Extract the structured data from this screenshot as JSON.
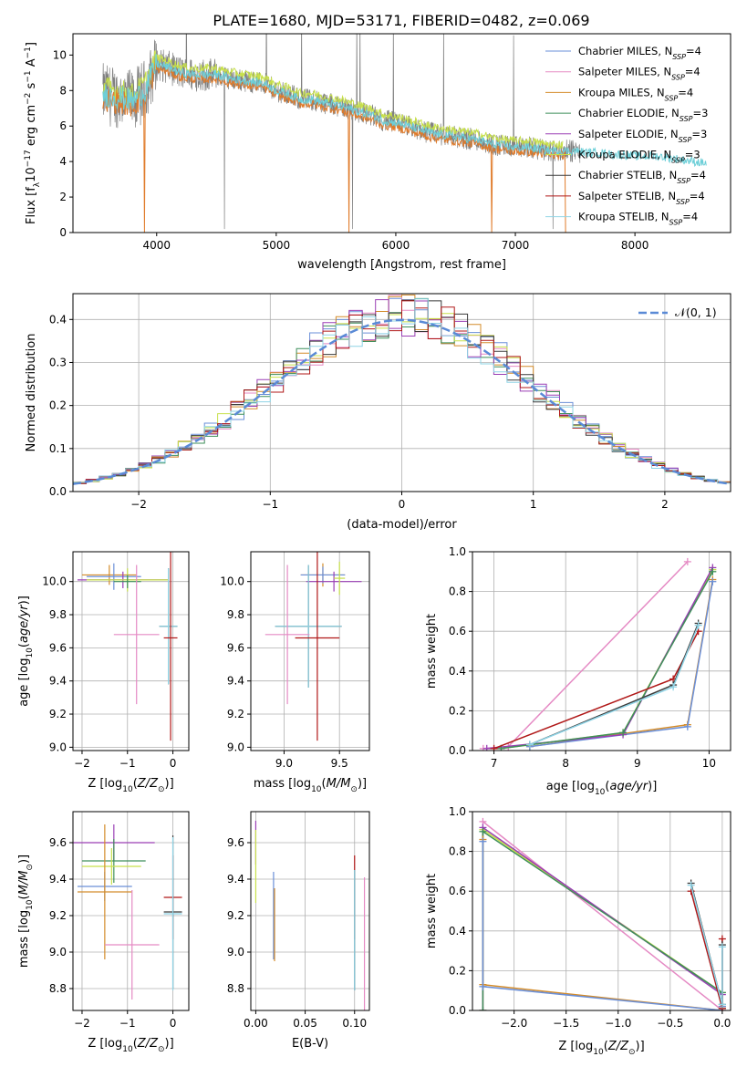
{
  "figure": {
    "title": "PLATE=1680, MJD=53171, FIBERID=0482, z=0.069"
  },
  "colors": {
    "chabrier_miles": "#6a8fd8",
    "salpeter_miles": "#e58ac4",
    "kroupa_miles": "#d48c2a",
    "chabrier_elodie": "#3f8f5a",
    "salpeter_elodie": "#9a3fb5",
    "kroupa_elodie": "#c7e04a",
    "chabrier_stelib": "#3a3a3a",
    "salpeter_stelib": "#b01818",
    "kroupa_stelib": "#8fd4e6",
    "data": "#808080",
    "model_orange": "#e07b2a",
    "model_cyan": "#6dcfd8",
    "gaussian": "#5a8ad6"
  },
  "chart_data": [
    {
      "id": "spectrum",
      "type": "line",
      "xlabel": "wavelength [Angstrom, rest frame]",
      "ylabel": "Flux [f_λ10^-17 erg cm^-2 s^-1 A^-1]",
      "ylabel_parts": [
        "Flux [f",
        "λ",
        "10",
        "−17",
        " erg cm",
        "−2",
        " s",
        "−1",
        " A",
        "−1",
        "]"
      ],
      "xlim": [
        3300,
        8800
      ],
      "ylim": [
        0,
        11.2
      ],
      "xticks": [
        4000,
        5000,
        6000,
        7000,
        8000
      ],
      "yticks": [
        0,
        2,
        4,
        6,
        8,
        10
      ],
      "continuum": [
        [
          3550,
          7.8
        ],
        [
          3700,
          7.6
        ],
        [
          3800,
          7.4
        ],
        [
          3900,
          8.0
        ],
        [
          4000,
          9.5
        ],
        [
          4100,
          9.3
        ],
        [
          4200,
          9.0
        ],
        [
          4300,
          8.9
        ],
        [
          4400,
          8.9
        ],
        [
          4500,
          8.9
        ],
        [
          4600,
          8.7
        ],
        [
          4700,
          8.6
        ],
        [
          4800,
          8.5
        ],
        [
          4900,
          8.4
        ],
        [
          5000,
          8.0
        ],
        [
          5100,
          7.8
        ],
        [
          5200,
          7.5
        ],
        [
          5300,
          7.5
        ],
        [
          5400,
          7.3
        ],
        [
          5500,
          7.2
        ],
        [
          5600,
          7.0
        ],
        [
          5700,
          6.8
        ],
        [
          5800,
          6.6
        ],
        [
          5900,
          6.3
        ],
        [
          6000,
          6.2
        ],
        [
          6100,
          6.0
        ],
        [
          6200,
          5.8
        ],
        [
          6300,
          5.6
        ],
        [
          6400,
          5.5
        ],
        [
          6500,
          5.4
        ],
        [
          6600,
          5.3
        ],
        [
          6700,
          5.2
        ],
        [
          6800,
          5.0
        ],
        [
          6900,
          4.9
        ],
        [
          7000,
          4.8
        ],
        [
          7100,
          4.8
        ],
        [
          7200,
          4.7
        ],
        [
          7300,
          4.6
        ],
        [
          7400,
          4.6
        ],
        [
          7500,
          4.6
        ],
        [
          7600,
          4.5
        ],
        [
          7700,
          4.5
        ],
        [
          7800,
          4.4
        ],
        [
          7900,
          4.4
        ],
        [
          8000,
          4.3
        ],
        [
          8100,
          4.3
        ],
        [
          8200,
          4.3
        ],
        [
          8300,
          4.2
        ],
        [
          8400,
          4.1
        ],
        [
          8500,
          4.0
        ],
        [
          8600,
          3.9
        ],
        [
          8700,
          3.8
        ],
        [
          8800,
          3.7
        ]
      ],
      "legend": [
        {
          "name": "Chabrier MILES, N",
          "sub": "SSP",
          "suffix": "=4",
          "color_key": "chabrier_miles"
        },
        {
          "name": "Salpeter MILES, N",
          "sub": "SSP",
          "suffix": "=4",
          "color_key": "salpeter_miles"
        },
        {
          "name": "Kroupa MILES, N",
          "sub": "SSP",
          "suffix": "=4",
          "color_key": "kroupa_miles"
        },
        {
          "name": "Chabrier ELODIE, N",
          "sub": "SSP",
          "suffix": "=3",
          "color_key": "chabrier_elodie"
        },
        {
          "name": "Salpeter ELODIE, N",
          "sub": "SSP",
          "suffix": "=3",
          "color_key": "salpeter_elodie"
        },
        {
          "name": "Kroupa ELODIE, N",
          "sub": "SSP",
          "suffix": "=3",
          "color_key": "kroupa_elodie"
        },
        {
          "name": "Chabrier STELIB, N",
          "sub": "SSP",
          "suffix": "=4",
          "color_key": "chabrier_stelib"
        },
        {
          "name": "Salpeter STELIB, N",
          "sub": "SSP",
          "suffix": "=4",
          "color_key": "salpeter_stelib"
        },
        {
          "name": "Kroupa STELIB, N",
          "sub": "SSP",
          "suffix": "=4",
          "color_key": "kroupa_stelib"
        }
      ]
    },
    {
      "id": "residuals",
      "type": "line",
      "xlabel": "(data-model)/error",
      "ylabel": "Normed distribution",
      "xlim": [
        -2.5,
        2.5
      ],
      "ylim": [
        0,
        0.46
      ],
      "xticks": [
        -2,
        -1,
        0,
        1,
        2
      ],
      "yticks": [
        0.0,
        0.1,
        0.2,
        0.3,
        0.4
      ],
      "legend_label": "𝒩(0, 1)",
      "bin_width": 0.1
    },
    {
      "id": "age_vs_Z",
      "type": "scatter",
      "xlabel": "Z [log10(Z/Z⊙)]",
      "ylabel": "age  [log10(age/yr)]",
      "xlim": [
        -2.2,
        0.35
      ],
      "ylim": [
        8.98,
        10.18
      ],
      "xticks": [
        -2,
        -1,
        0
      ],
      "yticks": [
        9.0,
        9.2,
        9.4,
        9.6,
        9.8,
        10.0
      ],
      "points": [
        {
          "x": -1.4,
          "y": 10.04,
          "xerr": 0.6,
          "yerr": 0.06,
          "color_key": "kroupa_miles"
        },
        {
          "x": -1.3,
          "y": 10.03,
          "xerr": 0.6,
          "yerr": 0.08,
          "color_key": "chabrier_miles"
        },
        {
          "x": -1.1,
          "y": 10.01,
          "xerr": 1.0,
          "yerr": 0.05,
          "color_key": "salpeter_elodie"
        },
        {
          "x": -1.0,
          "y": 10.01,
          "xerr": 0.9,
          "yerr": 0.07,
          "color_key": "kroupa_elodie"
        },
        {
          "x": -1.0,
          "y": 10.0,
          "xerr": 0.3,
          "yerr": 0.04,
          "color_key": "chabrier_elodie"
        },
        {
          "x": -0.8,
          "y": 9.68,
          "xerr": 0.5,
          "yerr": 0.42,
          "color_key": "salpeter_miles"
        },
        {
          "x": -0.1,
          "y": 9.73,
          "xerr": 0.2,
          "yerr": 0.35,
          "color_key": "chabrier_stelib"
        },
        {
          "x": -0.1,
          "y": 9.73,
          "xerr": 0.2,
          "yerr": 0.35,
          "color_key": "kroupa_stelib"
        },
        {
          "x": -0.05,
          "y": 9.66,
          "xerr": 0.15,
          "yerr": 0.62,
          "color_key": "salpeter_stelib"
        }
      ]
    },
    {
      "id": "age_vs_mass",
      "type": "scatter",
      "xlabel": "mass [log10(M/M⊙)]",
      "ylabel": "",
      "xlim": [
        8.7,
        9.77
      ],
      "ylim": [
        8.98,
        10.18
      ],
      "xticks": [
        9.0,
        9.5
      ],
      "yticks": [
        9.0,
        9.2,
        9.4,
        9.6,
        9.8,
        10.0
      ],
      "points": [
        {
          "x": 9.35,
          "y": 10.04,
          "xerr": 0.2,
          "yerr": 0.07,
          "color_key": "kroupa_miles"
        },
        {
          "x": 9.35,
          "y": 10.04,
          "xerr": 0.2,
          "yerr": 0.05,
          "color_key": "chabrier_miles"
        },
        {
          "x": 9.45,
          "y": 10.0,
          "xerr": 0.25,
          "yerr": 0.06,
          "color_key": "salpeter_elodie"
        },
        {
          "x": 9.5,
          "y": 10.02,
          "xerr": 0.05,
          "yerr": 0.1,
          "color_key": "kroupa_elodie"
        },
        {
          "x": 9.22,
          "y": 9.73,
          "xerr": 0.3,
          "yerr": 0.37,
          "color_key": "chabrier_stelib"
        },
        {
          "x": 9.22,
          "y": 9.73,
          "xerr": 0.3,
          "yerr": 0.37,
          "color_key": "kroupa_stelib"
        },
        {
          "x": 9.3,
          "y": 9.66,
          "xerr": 0.2,
          "yerr": 0.62,
          "color_key": "salpeter_stelib"
        },
        {
          "x": 9.03,
          "y": 9.68,
          "xerr": 0.2,
          "yerr": 0.42,
          "color_key": "salpeter_miles"
        }
      ]
    },
    {
      "id": "weight_vs_age",
      "type": "line",
      "xlabel": "age  [log10(age/yr)]",
      "ylabel": "mass weight",
      "xlim": [
        6.7,
        10.3
      ],
      "ylim": [
        0,
        1.0
      ],
      "xticks": [
        7,
        8,
        9,
        10
      ],
      "yticks": [
        0.0,
        0.2,
        0.4,
        0.6,
        0.8,
        1.0
      ],
      "series": [
        {
          "color_key": "salpeter_miles",
          "x": [
            6.85,
            7.2,
            9.7
          ],
          "y": [
            0.01,
            0.02,
            0.95
          ]
        },
        {
          "color_key": "kroupa_miles",
          "x": [
            7.5,
            9.7,
            10.05
          ],
          "y": [
            0.02,
            0.13,
            0.86
          ]
        },
        {
          "color_key": "chabrier_miles",
          "x": [
            7.5,
            9.7,
            10.05
          ],
          "y": [
            0.02,
            0.12,
            0.85
          ]
        },
        {
          "color_key": "kroupa_elodie",
          "x": [
            7.1,
            8.8,
            10.05
          ],
          "y": [
            0.01,
            0.09,
            0.91
          ]
        },
        {
          "color_key": "salpeter_elodie",
          "x": [
            6.9,
            8.8,
            10.05
          ],
          "y": [
            0.01,
            0.08,
            0.92
          ]
        },
        {
          "color_key": "chabrier_elodie",
          "x": [
            7.1,
            8.8,
            10.05
          ],
          "y": [
            0.01,
            0.09,
            0.9
          ]
        },
        {
          "color_key": "salpeter_stelib",
          "x": [
            7.0,
            9.5,
            9.85
          ],
          "y": [
            0.01,
            0.36,
            0.6
          ]
        },
        {
          "color_key": "chabrier_stelib",
          "x": [
            7.5,
            9.5,
            9.85
          ],
          "y": [
            0.03,
            0.33,
            0.64
          ]
        },
        {
          "color_key": "kroupa_stelib",
          "x": [
            7.5,
            9.5,
            9.85
          ],
          "y": [
            0.03,
            0.32,
            0.63
          ]
        }
      ]
    },
    {
      "id": "mass_vs_Z",
      "type": "scatter",
      "xlabel": "Z [log10(Z/Z⊙)]",
      "ylabel": "mass [log10(M/M⊙)]",
      "xlim": [
        -2.2,
        0.35
      ],
      "ylim": [
        8.68,
        9.77
      ],
      "xticks": [
        -2,
        -1,
        0
      ],
      "yticks": [
        8.8,
        9.0,
        9.2,
        9.4,
        9.6
      ],
      "points": [
        {
          "x": -1.3,
          "y": 9.6,
          "xerr": 0.9,
          "yerr": 0.1,
          "color_key": "salpeter_elodie"
        },
        {
          "x": -1.3,
          "y": 9.5,
          "xerr": 0.7,
          "yerr": 0.12,
          "color_key": "chabrier_elodie"
        },
        {
          "x": -1.35,
          "y": 9.47,
          "xerr": 0.65,
          "yerr": 0.1,
          "color_key": "kroupa_elodie"
        },
        {
          "x": -1.5,
          "y": 9.36,
          "xerr": 0.6,
          "yerr": 0.08,
          "color_key": "chabrier_miles"
        },
        {
          "x": -1.5,
          "y": 9.33,
          "xerr": 0.6,
          "yerr": 0.37,
          "color_key": "kroupa_miles"
        },
        {
          "x": -0.9,
          "y": 9.04,
          "xerr": 0.6,
          "yerr": 0.3,
          "color_key": "salpeter_miles"
        },
        {
          "x": 0.0,
          "y": 9.3,
          "xerr": 0.2,
          "yerr": 0.23,
          "color_key": "salpeter_stelib"
        },
        {
          "x": 0.0,
          "y": 9.22,
          "xerr": 0.2,
          "yerr": 0.42,
          "color_key": "chabrier_stelib"
        },
        {
          "x": 0.0,
          "y": 9.21,
          "xerr": 0.2,
          "yerr": 0.42,
          "color_key": "kroupa_stelib"
        }
      ]
    },
    {
      "id": "mass_vs_ebv",
      "type": "scatter",
      "xlabel": "E(B-V)",
      "ylabel": "",
      "xlim": [
        -0.005,
        0.115
      ],
      "ylim": [
        8.68,
        9.77
      ],
      "xticks": [
        0.0,
        0.05,
        0.1
      ],
      "xtick_labels": [
        "0.00",
        "0.05",
        "0.10"
      ],
      "yticks": [
        8.8,
        9.0,
        9.2,
        9.4,
        9.6
      ],
      "points": [
        {
          "x": 0.0,
          "y": 9.6,
          "xerr": 0,
          "yerr": 0.12,
          "color_key": "salpeter_elodie"
        },
        {
          "x": 0.0,
          "y": 9.47,
          "xerr": 0,
          "yerr": 0.2,
          "color_key": "kroupa_elodie"
        },
        {
          "x": 0.018,
          "y": 9.2,
          "xerr": 0,
          "yerr": 0.24,
          "color_key": "chabrier_miles"
        },
        {
          "x": 0.019,
          "y": 9.15,
          "xerr": 0,
          "yerr": 0.2,
          "color_key": "kroupa_miles"
        },
        {
          "x": 0.1,
          "y": 9.3,
          "xerr": 0,
          "yerr": 0.23,
          "color_key": "salpeter_stelib"
        },
        {
          "x": 0.1,
          "y": 9.12,
          "xerr": 0,
          "yerr": 0.33,
          "color_key": "chabrier_stelib"
        },
        {
          "x": 0.1,
          "y": 9.12,
          "xerr": 0,
          "yerr": 0.33,
          "color_key": "kroupa_stelib"
        },
        {
          "x": 0.11,
          "y": 9.04,
          "xerr": 0,
          "yerr": 0.37,
          "color_key": "salpeter_miles"
        }
      ]
    },
    {
      "id": "weight_vs_Z",
      "type": "line",
      "xlabel": "Z [log10(Z/Z⊙)]",
      "ylabel": "mass weight",
      "xlim": [
        -2.4,
        0.08
      ],
      "ylim": [
        0,
        1.0
      ],
      "xticks": [
        -2.0,
        -1.5,
        -1.0,
        -0.5,
        0.0
      ],
      "xtick_labels": [
        "−2.0",
        "−1.5",
        "−1.0",
        "−0.5",
        "0.0"
      ],
      "yticks": [
        0.0,
        0.2,
        0.4,
        0.6,
        0.8,
        1.0
      ],
      "series": [
        {
          "color_key": "salpeter_miles",
          "x": [
            -2.3,
            0.0
          ],
          "y": [
            0.95,
            0.0
          ]
        },
        {
          "color_key": "kroupa_elodie",
          "x": [
            -2.3,
            -2.3,
            0.0,
            0.0
          ],
          "y": [
            0.0,
            0.91,
            0.09,
            0.01
          ]
        },
        {
          "color_key": "salpeter_elodie",
          "x": [
            -2.3,
            -2.3,
            0.0,
            0.0
          ],
          "y": [
            0.0,
            0.92,
            0.08,
            0.01
          ]
        },
        {
          "color_key": "chabrier_elodie",
          "x": [
            -2.3,
            -2.3,
            0.0,
            0.0
          ],
          "y": [
            0.0,
            0.9,
            0.09,
            0.01
          ]
        },
        {
          "color_key": "kroupa_miles",
          "x": [
            -2.3,
            -2.3,
            0.0,
            0.0
          ],
          "y": [
            0.86,
            0.13,
            0.0,
            0.02
          ]
        },
        {
          "color_key": "chabrier_miles",
          "x": [
            -2.3,
            -2.3,
            0.0,
            0.0
          ],
          "y": [
            0.85,
            0.12,
            0.0,
            0.02
          ]
        },
        {
          "color_key": "salpeter_stelib",
          "x": [
            -0.3,
            0.0,
            0.0
          ],
          "y": [
            0.6,
            0.01,
            0.36
          ]
        },
        {
          "color_key": "chabrier_stelib",
          "x": [
            -0.3,
            0.0,
            0.0
          ],
          "y": [
            0.64,
            0.03,
            0.33
          ]
        },
        {
          "color_key": "kroupa_stelib",
          "x": [
            -0.3,
            0.0,
            0.0
          ],
          "y": [
            0.63,
            0.03,
            0.32
          ]
        }
      ]
    }
  ]
}
